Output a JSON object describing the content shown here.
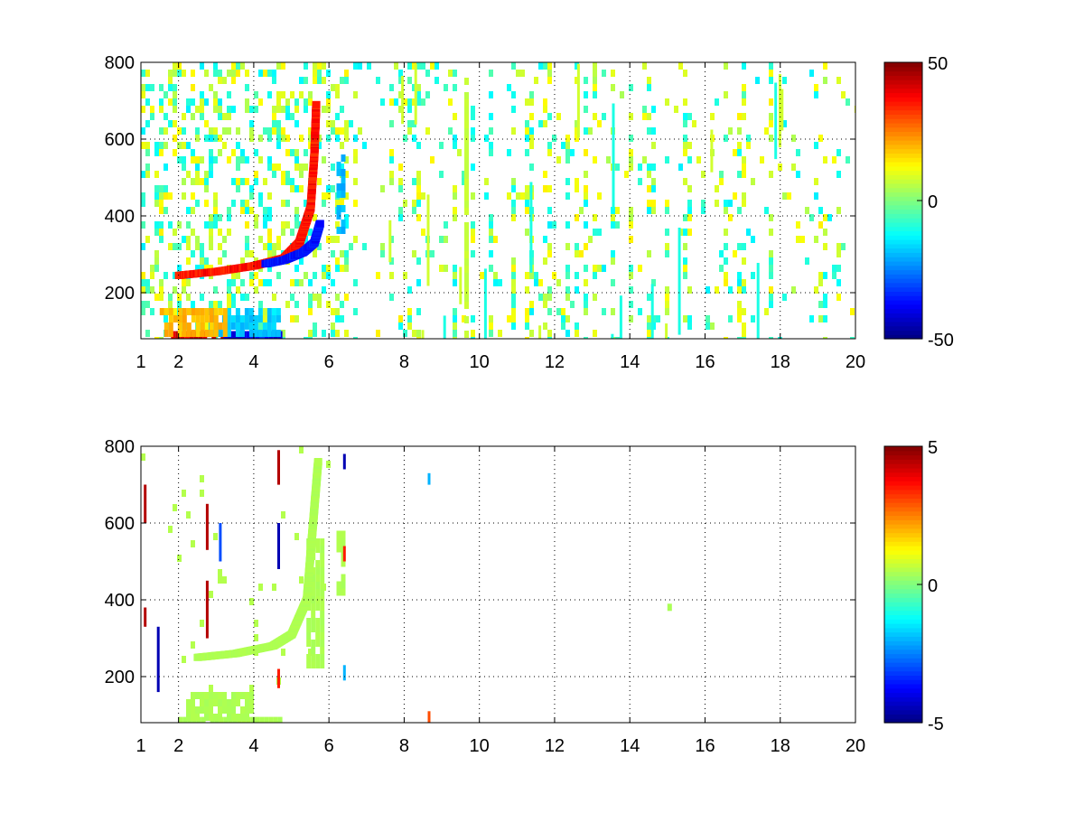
{
  "chart_data": [
    {
      "type": "heatmap",
      "title": "",
      "xlabel": "",
      "ylabel": "",
      "xlim": [
        1,
        20
      ],
      "ylim": [
        80,
        800
      ],
      "grid": true,
      "x_ticks": [
        1,
        2,
        4,
        6,
        8,
        10,
        12,
        14,
        16,
        18,
        20
      ],
      "y_ticks": [
        200,
        400,
        600,
        800
      ],
      "colormap": "jet",
      "clim": [
        -50,
        50
      ],
      "colorbar_ticks": [
        -50,
        0,
        50
      ],
      "features": [
        {
          "kind": "curve",
          "value": 40,
          "points": [
            [
              2.0,
              245
            ],
            [
              3.0,
              255
            ],
            [
              4.0,
              270
            ],
            [
              4.8,
              290
            ],
            [
              5.2,
              330
            ],
            [
              5.5,
              420
            ],
            [
              5.6,
              560
            ],
            [
              5.65,
              690
            ]
          ]
        },
        {
          "kind": "curve",
          "value": -40,
          "points": [
            [
              4.3,
              275
            ],
            [
              4.8,
              285
            ],
            [
              5.3,
              305
            ],
            [
              5.6,
              330
            ],
            [
              5.75,
              380
            ]
          ]
        },
        {
          "kind": "band",
          "value": 45,
          "x": [
            1.8,
            3.8
          ],
          "y": [
            80,
            100
          ]
        },
        {
          "kind": "band",
          "value": -42,
          "x": [
            3.2,
            4.7
          ],
          "y": [
            80,
            100
          ]
        },
        {
          "kind": "band",
          "value": -20,
          "x": [
            2.8,
            4.7
          ],
          "y": [
            100,
            160
          ]
        },
        {
          "kind": "band",
          "value": 22,
          "x": [
            1.5,
            3.2
          ],
          "y": [
            100,
            160
          ]
        },
        {
          "kind": "band",
          "value": -22,
          "x": [
            6.2,
            6.4
          ],
          "y": [
            360,
            560
          ]
        },
        {
          "kind": "band",
          "value": 8,
          "x": [
            9.6,
            9.7
          ],
          "y": [
            80,
            760
          ]
        }
      ],
      "noise": {
        "amplitude": 20,
        "x_range": [
          1,
          20
        ],
        "y_range": [
          80,
          800
        ]
      }
    },
    {
      "type": "heatmap",
      "title": "",
      "xlabel": "",
      "ylabel": "",
      "xlim": [
        1,
        20
      ],
      "ylim": [
        80,
        800
      ],
      "grid": true,
      "x_ticks": [
        1,
        2,
        4,
        6,
        8,
        10,
        12,
        14,
        16,
        18,
        20
      ],
      "y_ticks": [
        200,
        400,
        600,
        800
      ],
      "colormap": "jet",
      "clim": [
        -5,
        5
      ],
      "colorbar_ticks": [
        -5,
        0,
        5
      ],
      "features": [
        {
          "kind": "band",
          "value": 0.5,
          "x": [
            2.0,
            4.7
          ],
          "y": [
            80,
            95
          ]
        },
        {
          "kind": "band",
          "value": 0.5,
          "x": [
            2.2,
            3.9
          ],
          "y": [
            95,
            160
          ]
        },
        {
          "kind": "curve",
          "value": 0.5,
          "points": [
            [
              2.5,
              250
            ],
            [
              3.5,
              260
            ],
            [
              4.5,
              280
            ],
            [
              5.0,
              310
            ],
            [
              5.4,
              400
            ],
            [
              5.5,
              520
            ],
            [
              5.6,
              640
            ],
            [
              5.7,
              760
            ]
          ]
        },
        {
          "kind": "band",
          "value": 0.5,
          "x": [
            5.4,
            5.8
          ],
          "y": [
            230,
            560
          ]
        },
        {
          "kind": "band",
          "value": 0.5,
          "x": [
            6.2,
            6.4
          ],
          "y": [
            400,
            580
          ]
        },
        {
          "kind": "band",
          "value": 0.5,
          "x": [
            15.0,
            15.1
          ],
          "y": [
            380,
            390
          ]
        },
        {
          "kind": "spike",
          "value": 4.5,
          "x": 1.1,
          "y": [
            600,
            700
          ]
        },
        {
          "kind": "spike",
          "value": 4.5,
          "x": 1.1,
          "y": [
            330,
            380
          ]
        },
        {
          "kind": "spike",
          "value": -4.5,
          "x": 1.45,
          "y": [
            160,
            330
          ]
        },
        {
          "kind": "spike",
          "value": 4.5,
          "x": 2.75,
          "y": [
            530,
            650
          ]
        },
        {
          "kind": "spike",
          "value": 4.5,
          "x": 2.75,
          "y": [
            300,
            450
          ]
        },
        {
          "kind": "spike",
          "value": -3,
          "x": 3.1,
          "y": [
            500,
            600
          ]
        },
        {
          "kind": "spike",
          "value": 4.5,
          "x": 4.65,
          "y": [
            700,
            790
          ]
        },
        {
          "kind": "spike",
          "value": -4.5,
          "x": 4.65,
          "y": [
            480,
            600
          ]
        },
        {
          "kind": "spike",
          "value": 3.5,
          "x": 4.65,
          "y": [
            170,
            220
          ]
        },
        {
          "kind": "spike",
          "value": -4.5,
          "x": 6.4,
          "y": [
            740,
            780
          ]
        },
        {
          "kind": "spike",
          "value": 3.5,
          "x": 6.4,
          "y": [
            500,
            540
          ]
        },
        {
          "kind": "spike",
          "value": -2,
          "x": 6.4,
          "y": [
            190,
            230
          ]
        },
        {
          "kind": "spike",
          "value": -2,
          "x": 8.65,
          "y": [
            700,
            730
          ]
        },
        {
          "kind": "spike",
          "value": 3,
          "x": 8.65,
          "y": [
            80,
            110
          ]
        }
      ],
      "noise": {
        "amplitude": 1.5,
        "x_range": [
          1,
          6
        ],
        "y_range": [
          80,
          800
        ]
      }
    }
  ]
}
